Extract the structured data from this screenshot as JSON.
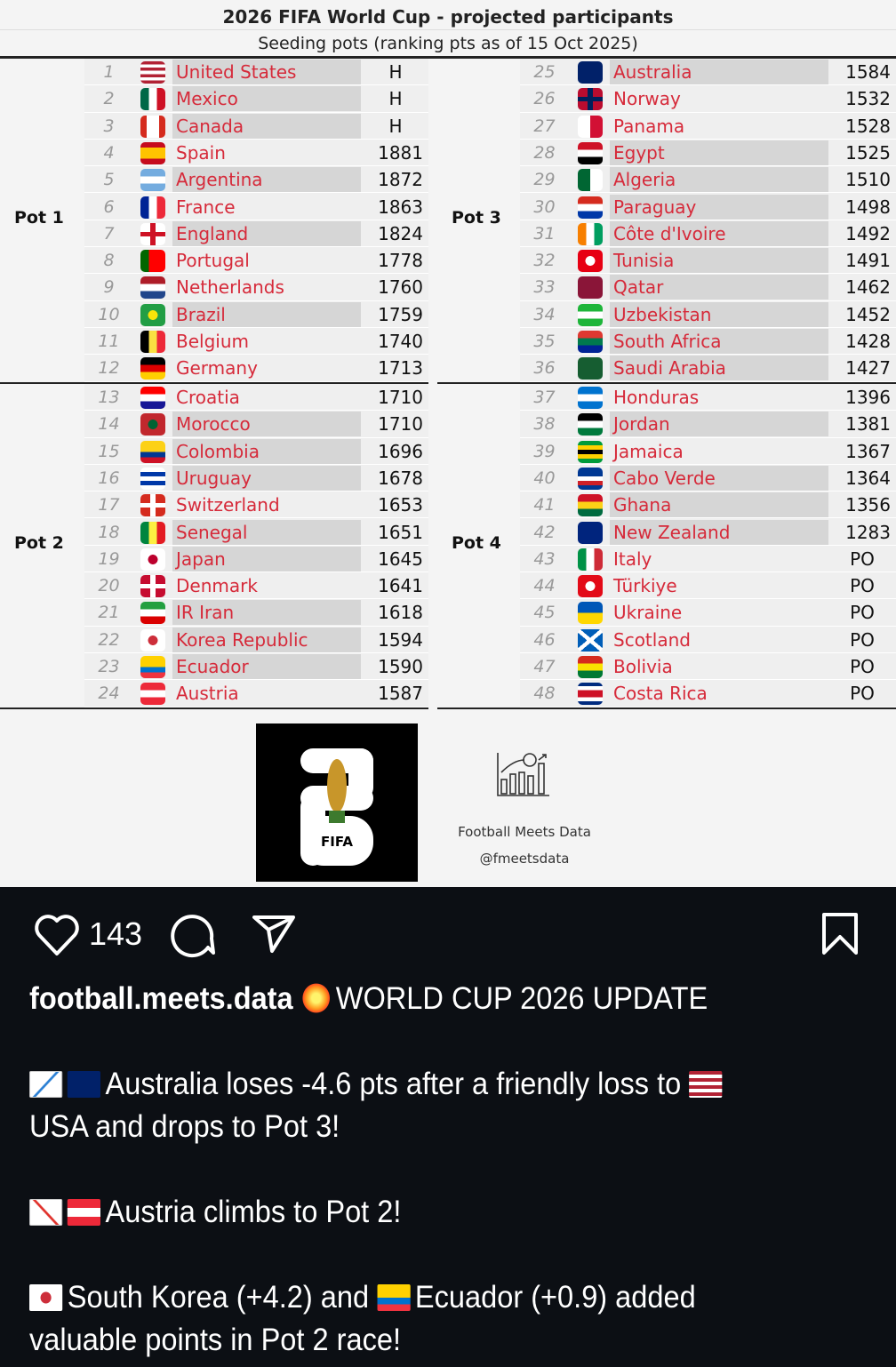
{
  "table": {
    "title": "2026 FIFA World Cup - projected participants",
    "subtitle": "Seeding pots (ranking pts as of 15 Oct 2025)",
    "name_color": "#d62a3a",
    "highlight_color": "#d6d6d6",
    "pots": [
      {
        "label": "Pot 1",
        "teams": [
          {
            "rank": "1",
            "name": "United States",
            "pts": "H",
            "q": true,
            "flag": {
              "k": "h",
              "c": [
                "#b22234",
                "#fff",
                "#b22234",
                "#fff",
                "#b22234",
                "#fff",
                "#b22234"
              ]
            }
          },
          {
            "rank": "2",
            "name": "Mexico",
            "pts": "H",
            "q": true,
            "flag": {
              "k": "v",
              "c": [
                "#006847",
                "#fff",
                "#ce1126"
              ]
            }
          },
          {
            "rank": "3",
            "name": "Canada",
            "pts": "H",
            "q": true,
            "flag": {
              "k": "v",
              "c": [
                "#d52b1e",
                "#fff",
                "#fff",
                "#d52b1e"
              ]
            }
          },
          {
            "rank": "4",
            "name": "Spain",
            "pts": "1881",
            "q": false,
            "flag": {
              "k": "h",
              "c": [
                "#c60b1e",
                "#ffc400",
                "#ffc400",
                "#c60b1e"
              ]
            }
          },
          {
            "rank": "5",
            "name": "Argentina",
            "pts": "1872",
            "q": true,
            "flag": {
              "k": "h",
              "c": [
                "#74acdf",
                "#fff",
                "#74acdf"
              ]
            }
          },
          {
            "rank": "6",
            "name": "France",
            "pts": "1863",
            "q": false,
            "flag": {
              "k": "v",
              "c": [
                "#002395",
                "#fff",
                "#ed2939"
              ]
            }
          },
          {
            "rank": "7",
            "name": "England",
            "pts": "1824",
            "q": true,
            "flag": {
              "k": "cross",
              "c": [
                "#fff",
                "#ce1124"
              ]
            }
          },
          {
            "rank": "8",
            "name": "Portugal",
            "pts": "1778",
            "q": false,
            "flag": {
              "k": "v",
              "c": [
                "#006600",
                "#ff0000",
                "#ff0000"
              ]
            }
          },
          {
            "rank": "9",
            "name": "Netherlands",
            "pts": "1760",
            "q": false,
            "flag": {
              "k": "h",
              "c": [
                "#ae1c28",
                "#fff",
                "#21468b"
              ]
            }
          },
          {
            "rank": "10",
            "name": "Brazil",
            "pts": "1759",
            "q": true,
            "flag": {
              "k": "dot",
              "c": [
                "#229e45",
                "#f8e509"
              ]
            }
          },
          {
            "rank": "11",
            "name": "Belgium",
            "pts": "1740",
            "q": false,
            "flag": {
              "k": "v",
              "c": [
                "#000",
                "#fae042",
                "#ed2939"
              ]
            }
          },
          {
            "rank": "12",
            "name": "Germany",
            "pts": "1713",
            "q": false,
            "flag": {
              "k": "h",
              "c": [
                "#000",
                "#dd0000",
                "#ffce00"
              ]
            }
          }
        ]
      },
      {
        "label": "Pot 2",
        "teams": [
          {
            "rank": "13",
            "name": "Croatia",
            "pts": "1710",
            "q": false,
            "flag": {
              "k": "h",
              "c": [
                "#ff0000",
                "#fff",
                "#171796"
              ]
            }
          },
          {
            "rank": "14",
            "name": "Morocco",
            "pts": "1710",
            "q": true,
            "flag": {
              "k": "dot",
              "c": [
                "#c1272d",
                "#006233"
              ]
            }
          },
          {
            "rank": "15",
            "name": "Colombia",
            "pts": "1696",
            "q": true,
            "flag": {
              "k": "h",
              "c": [
                "#fcd116",
                "#fcd116",
                "#003893",
                "#ce1126"
              ]
            }
          },
          {
            "rank": "16",
            "name": "Uruguay",
            "pts": "1678",
            "q": true,
            "flag": {
              "k": "h",
              "c": [
                "#fff",
                "#0038a8",
                "#fff",
                "#0038a8",
                "#fff"
              ]
            }
          },
          {
            "rank": "17",
            "name": "Switzerland",
            "pts": "1653",
            "q": false,
            "flag": {
              "k": "cross",
              "c": [
                "#d52b1e",
                "#fff"
              ]
            }
          },
          {
            "rank": "18",
            "name": "Senegal",
            "pts": "1651",
            "q": true,
            "flag": {
              "k": "v",
              "c": [
                "#00853f",
                "#fdef42",
                "#e31b23"
              ]
            }
          },
          {
            "rank": "19",
            "name": "Japan",
            "pts": "1645",
            "q": true,
            "flag": {
              "k": "dot",
              "c": [
                "#fff",
                "#bc002d"
              ]
            }
          },
          {
            "rank": "20",
            "name": "Denmark",
            "pts": "1641",
            "q": false,
            "flag": {
              "k": "cross",
              "c": [
                "#c60c30",
                "#fff"
              ]
            }
          },
          {
            "rank": "21",
            "name": "IR Iran",
            "pts": "1618",
            "q": true,
            "flag": {
              "k": "h",
              "c": [
                "#239f40",
                "#fff",
                "#da0000"
              ]
            }
          },
          {
            "rank": "22",
            "name": "Korea Republic",
            "pts": "1594",
            "q": true,
            "flag": {
              "k": "dot",
              "c": [
                "#fff",
                "#cd2e3a"
              ]
            }
          },
          {
            "rank": "23",
            "name": "Ecuador",
            "pts": "1590",
            "q": true,
            "flag": {
              "k": "h",
              "c": [
                "#ffd100",
                "#ffd100",
                "#0072ce",
                "#ef3340"
              ]
            }
          },
          {
            "rank": "24",
            "name": "Austria",
            "pts": "1587",
            "q": false,
            "flag": {
              "k": "h",
              "c": [
                "#ed2939",
                "#fff",
                "#ed2939"
              ]
            }
          }
        ]
      },
      {
        "label": "Pot 3",
        "teams": [
          {
            "rank": "25",
            "name": "Australia",
            "pts": "1584",
            "q": true,
            "flag": {
              "k": "h",
              "c": [
                "#012169"
              ]
            }
          },
          {
            "rank": "26",
            "name": "Norway",
            "pts": "1532",
            "q": false,
            "flag": {
              "k": "cross",
              "c": [
                "#ba0c2f",
                "#00205b"
              ]
            }
          },
          {
            "rank": "27",
            "name": "Panama",
            "pts": "1528",
            "q": false,
            "flag": {
              "k": "v",
              "c": [
                "#fff",
                "#d21034"
              ]
            }
          },
          {
            "rank": "28",
            "name": "Egypt",
            "pts": "1525",
            "q": true,
            "flag": {
              "k": "h",
              "c": [
                "#ce1126",
                "#fff",
                "#000"
              ]
            }
          },
          {
            "rank": "29",
            "name": "Algeria",
            "pts": "1510",
            "q": true,
            "flag": {
              "k": "v",
              "c": [
                "#006633",
                "#fff"
              ]
            }
          },
          {
            "rank": "30",
            "name": "Paraguay",
            "pts": "1498",
            "q": true,
            "flag": {
              "k": "h",
              "c": [
                "#d52b1e",
                "#fff",
                "#0038a8"
              ]
            }
          },
          {
            "rank": "31",
            "name": "Côte d'Ivoire",
            "pts": "1492",
            "q": true,
            "flag": {
              "k": "v",
              "c": [
                "#f77f00",
                "#fff",
                "#009e60"
              ]
            }
          },
          {
            "rank": "32",
            "name": "Tunisia",
            "pts": "1491",
            "q": true,
            "flag": {
              "k": "dot",
              "c": [
                "#e70013",
                "#fff"
              ]
            }
          },
          {
            "rank": "33",
            "name": "Qatar",
            "pts": "1462",
            "q": true,
            "flag": {
              "k": "h",
              "c": [
                "#8a1538"
              ]
            }
          },
          {
            "rank": "34",
            "name": "Uzbekistan",
            "pts": "1452",
            "q": true,
            "flag": {
              "k": "h",
              "c": [
                "#1eb53a",
                "#fff",
                "#1eb53a"
              ]
            }
          },
          {
            "rank": "35",
            "name": "South Africa",
            "pts": "1428",
            "q": true,
            "flag": {
              "k": "h",
              "c": [
                "#de3831",
                "#007a4d",
                "#002395"
              ]
            }
          },
          {
            "rank": "36",
            "name": "Saudi Arabia",
            "pts": "1427",
            "q": true,
            "flag": {
              "k": "h",
              "c": [
                "#165d31"
              ]
            }
          }
        ]
      },
      {
        "label": "Pot 4",
        "teams": [
          {
            "rank": "37",
            "name": "Honduras",
            "pts": "1396",
            "q": false,
            "flag": {
              "k": "h",
              "c": [
                "#0073cf",
                "#fff",
                "#0073cf"
              ]
            }
          },
          {
            "rank": "38",
            "name": "Jordan",
            "pts": "1381",
            "q": true,
            "flag": {
              "k": "h",
              "c": [
                "#000",
                "#fff",
                "#007a3d"
              ]
            }
          },
          {
            "rank": "39",
            "name": "Jamaica",
            "pts": "1367",
            "q": false,
            "flag": {
              "k": "h",
              "c": [
                "#009b3a",
                "#fed100",
                "#000",
                "#fed100",
                "#009b3a"
              ]
            }
          },
          {
            "rank": "40",
            "name": "Cabo Verde",
            "pts": "1364",
            "q": true,
            "flag": {
              "k": "h",
              "c": [
                "#003893",
                "#003893",
                "#fff",
                "#cf2027",
                "#003893"
              ]
            }
          },
          {
            "rank": "41",
            "name": "Ghana",
            "pts": "1356",
            "q": true,
            "flag": {
              "k": "h",
              "c": [
                "#ce1126",
                "#fcd116",
                "#006b3f"
              ]
            }
          },
          {
            "rank": "42",
            "name": "New Zealand",
            "pts": "1283",
            "q": true,
            "flag": {
              "k": "h",
              "c": [
                "#00247d"
              ]
            }
          },
          {
            "rank": "43",
            "name": "Italy",
            "pts": "PO",
            "q": false,
            "flag": {
              "k": "v",
              "c": [
                "#009246",
                "#fff",
                "#ce2b37"
              ]
            }
          },
          {
            "rank": "44",
            "name": "Türkiye",
            "pts": "PO",
            "q": false,
            "flag": {
              "k": "dot",
              "c": [
                "#e30a17",
                "#fff"
              ]
            }
          },
          {
            "rank": "45",
            "name": "Ukraine",
            "pts": "PO",
            "q": false,
            "flag": {
              "k": "h",
              "c": [
                "#0057b7",
                "#ffd700"
              ]
            }
          },
          {
            "rank": "46",
            "name": "Scotland",
            "pts": "PO",
            "q": false,
            "flag": {
              "k": "x",
              "c": [
                "#005eb8",
                "#fff"
              ]
            }
          },
          {
            "rank": "47",
            "name": "Bolivia",
            "pts": "PO",
            "q": false,
            "flag": {
              "k": "h",
              "c": [
                "#d52b1e",
                "#f9e300",
                "#007934"
              ]
            }
          },
          {
            "rank": "48",
            "name": "Costa Rica",
            "pts": "PO",
            "q": false,
            "flag": {
              "k": "h",
              "c": [
                "#002b7f",
                "#fff",
                "#ce1126",
                "#ce1126",
                "#fff",
                "#002b7f"
              ]
            }
          }
        ]
      }
    ]
  },
  "logos": {
    "fifa_text": "FIFA",
    "fifa_number": "26",
    "brand_name": "Football Meets Data",
    "brand_handle": "@fmeetsdata"
  },
  "actions": {
    "likes": "143",
    "icons": [
      "heart-icon",
      "comment-icon",
      "share-icon",
      "bookmark-icon"
    ]
  },
  "caption": {
    "username": "football.meets.data",
    "headline": "WORLD CUP 2026 UPDATE",
    "headline_icon": "collision-emoji",
    "lines": [
      {
        "icons": [
          "chart-decreasing-emoji",
          "flag-australia-emoji"
        ],
        "text": "Australia loses -4.6 pts after a friendly loss to",
        "trail_icon": "flag-usa-emoji"
      },
      {
        "text": "USA and drops to Pot 3!"
      },
      {
        "icons": [
          "chart-increasing-emoji",
          "flag-austria-emoji"
        ],
        "text": "Austria climbs to Pot 2!"
      },
      {
        "icons": [
          "flag-south-korea-emoji"
        ],
        "text": "South Korea (+4.2) and",
        "mid_icon": "flag-ecuador-emoji",
        "text2": "Ecuador (+0.9) added"
      },
      {
        "text": "valuable points in Pot 2 race!"
      }
    ]
  }
}
